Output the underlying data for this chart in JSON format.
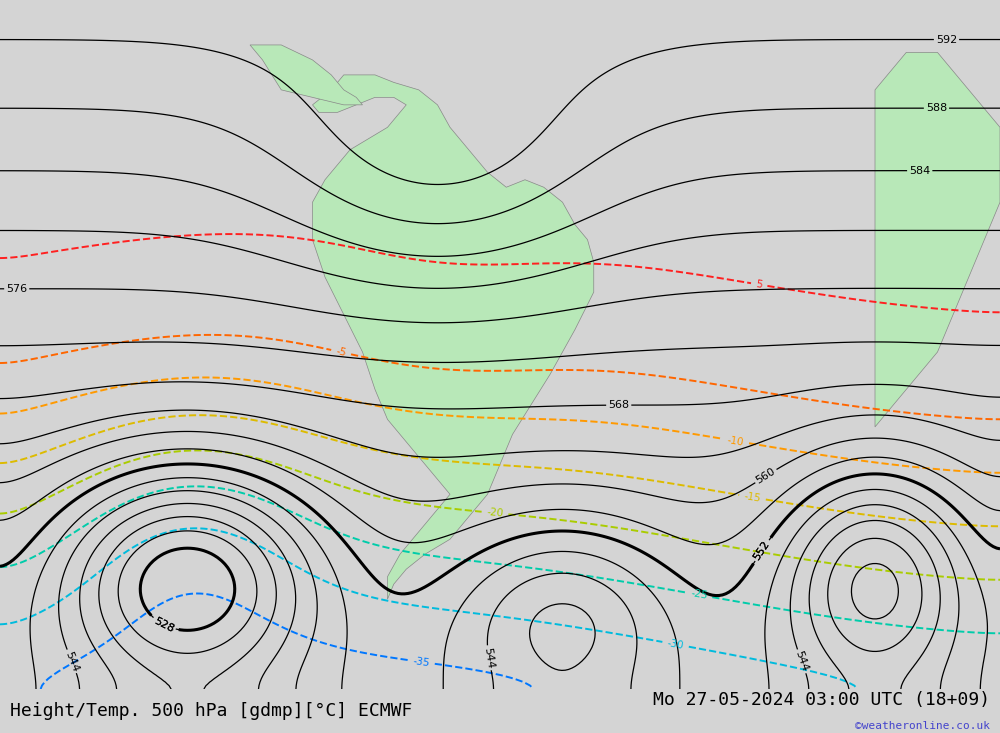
{
  "title_left": "Height/Temp. 500 hPa [gdmp][°C] ECMWF",
  "title_right": "Mo 27-05-2024 03:00 UTC (18+09)",
  "watermark": "©weatheronline.co.uk",
  "bg_color": "#d4d4d4",
  "land_color": "#b8e8b8",
  "ocean_color": "#d4d4d4",
  "height_contour_color": "#000000",
  "temp_colors": {
    "pos5": "#ff0000",
    "neg5": "#ff6600",
    "neg10": "#ff8800",
    "neg15": "#ffaa00",
    "neg20": "#aacc00",
    "neg25": "#00ccaa",
    "neg30": "#00aaff",
    "neg35": "#0066ff",
    "neg40": "#0000ff"
  },
  "font_size_title": 13,
  "font_size_labels": 9
}
